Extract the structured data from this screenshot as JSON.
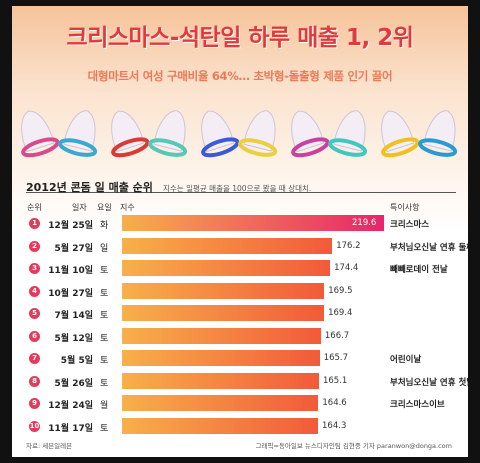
{
  "title": "크리스마스-석탄일 하루 매출 1, 2위",
  "subtitle": "대형마트서 여성 구매비율 64%… 초박형-돌출형 제품 인기 끌어",
  "chart_data": {
    "type": "bar",
    "orientation": "horizontal",
    "title": "2012년 콘돔 일 매출 순위",
    "note": "지수는 일평균 매출을 100으로 봤을 때 상대치.",
    "columns": [
      "순위",
      "일자",
      "요일",
      "지수",
      "특이사항"
    ],
    "rows": [
      {
        "rank": "1",
        "date": "12월 25일",
        "day": "화",
        "value": 219.6,
        "label": "219.6",
        "note": "크리스마스"
      },
      {
        "rank": "2",
        "date": "5월 27일",
        "day": "일",
        "value": 176.2,
        "label": "176.2",
        "note": "부처님오신날 연휴 둘째 날"
      },
      {
        "rank": "3",
        "date": "11월 10일",
        "day": "토",
        "value": 174.4,
        "label": "174.4",
        "note": "빼빼로데이 전날"
      },
      {
        "rank": "4",
        "date": "10월 27일",
        "day": "토",
        "value": 169.5,
        "label": "169.5",
        "note": ""
      },
      {
        "rank": "5",
        "date": "7월 14일",
        "day": "토",
        "value": 169.4,
        "label": "169.4",
        "note": ""
      },
      {
        "rank": "6",
        "date": "5월 12일",
        "day": "토",
        "value": 166.7,
        "label": "166.7",
        "note": ""
      },
      {
        "rank": "7",
        "date": "5월 5일",
        "day": "토",
        "value": 165.7,
        "label": "165.7",
        "note": "어린이날"
      },
      {
        "rank": "8",
        "date": "5월 26일",
        "day": "토",
        "value": 165.1,
        "label": "165.1",
        "note": "부처님오신날 연휴 첫날"
      },
      {
        "rank": "9",
        "date": "12월 24일",
        "day": "월",
        "value": 164.6,
        "label": "164.6",
        "note": "크리스마스이브"
      },
      {
        "rank": "10",
        "date": "11월 17일",
        "day": "토",
        "value": 164.3,
        "label": "164.3",
        "note": ""
      }
    ],
    "xlim": [
      0,
      219.6
    ],
    "colors": {
      "top": "#e8246a",
      "mid": "#f25a3a",
      "start": "#f7b04a",
      "rank_badge": "#e23c5a"
    }
  },
  "footer": {
    "source": "자료: 세븐일레븐",
    "credit": "그래픽=동아일보 뉴스디자인팀 김현중 기자 paranwon@donga.com"
  },
  "products": {
    "colors": [
      "#d84a8c",
      "#3aa8d0",
      "#d83a3a",
      "#55c8b8",
      "#3a5ad8",
      "#e8d040",
      "#c840a0",
      "#40c8c0",
      "#f0c020",
      "#2a9ad0"
    ]
  }
}
